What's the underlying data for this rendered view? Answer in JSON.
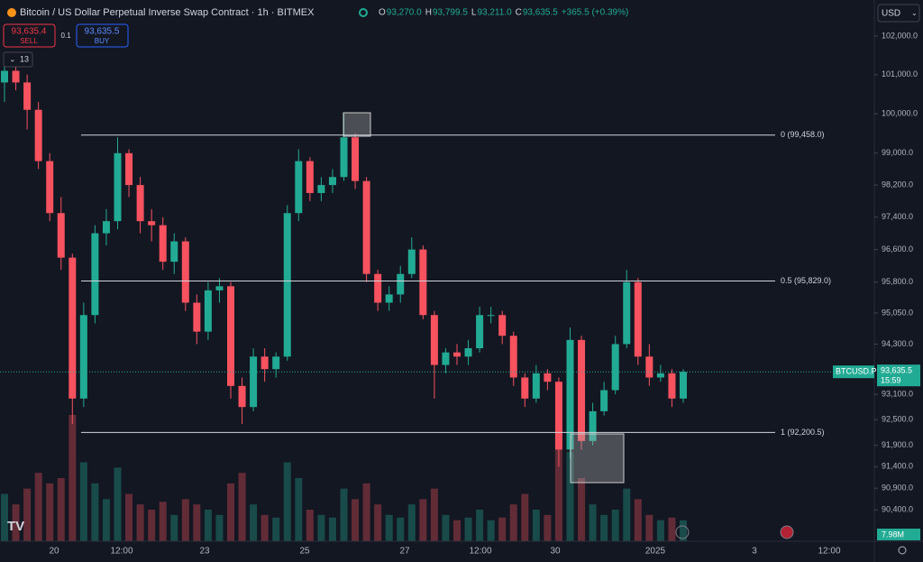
{
  "header": {
    "title": "Bitcoin / US Dollar Perpetual Inverse Swap Contract · 1h · BITMEX",
    "ohlc": [
      {
        "key": "O",
        "value": "93,270.0"
      },
      {
        "key": "H",
        "value": "93,799.5"
      },
      {
        "key": "L",
        "value": "93,211.0"
      },
      {
        "key": "C",
        "value": "93,635.5"
      }
    ],
    "change": "+365.5 (+0.39%)"
  },
  "trade": {
    "sell_price": "93,635.4",
    "sell": "SELL",
    "qty": "0.1",
    "buy_price": "93,635.5",
    "buy": "BUY"
  },
  "indicators_count": "13",
  "currency": "USD",
  "chart_data": {
    "type": "candlestick",
    "log_scale": true,
    "ylim": [
      89680,
      102940
    ],
    "yticks": [
      {
        "value": 102000,
        "label": "102,000.0"
      },
      {
        "value": 101000,
        "label": "101,000.0"
      },
      {
        "value": 100000,
        "label": "100,000.0"
      },
      {
        "value": 99000,
        "label": "99,000.0"
      },
      {
        "value": 98200,
        "label": "98,200.0"
      },
      {
        "value": 97400,
        "label": "97,400.0"
      },
      {
        "value": 96600,
        "label": "96,600.0"
      },
      {
        "value": 95800,
        "label": "95,800.0"
      },
      {
        "value": 95050,
        "label": "95,050.0"
      },
      {
        "value": 94300,
        "label": "94,300.0"
      },
      {
        "value": 93100,
        "label": "93,100.0"
      },
      {
        "value": 92500,
        "label": "92,500.0"
      },
      {
        "value": 91900,
        "label": "91,900.0"
      },
      {
        "value": 91400,
        "label": "91,400.0"
      },
      {
        "value": 90900,
        "label": "90,900.0"
      },
      {
        "value": 90400,
        "label": "90,400.0"
      }
    ],
    "xlabels": [
      "20",
      "12:00",
      "23",
      "25",
      "27",
      "12:00",
      "30",
      "2025",
      "3",
      "12:00"
    ],
    "open": [
      100800,
      101100,
      100800,
      100100,
      98800,
      97500,
      96400,
      93000,
      95000,
      97000,
      97300,
      99000,
      98200,
      97300,
      97200,
      96300,
      96800,
      95300,
      94600,
      95600,
      95700,
      93300,
      92800,
      94000,
      93700,
      94000,
      97500,
      98800,
      98000,
      98200,
      98400,
      99400,
      98300,
      96000,
      95300,
      95500,
      96000,
      96600,
      95000,
      93800,
      94100,
      94000,
      94200,
      95000,
      95000,
      94500,
      93500,
      93000,
      93600,
      93400,
      91800,
      94400,
      92000,
      92700,
      93200,
      94300,
      95800,
      94000,
      93500,
      93600,
      93000
    ],
    "high": [
      101300,
      101500,
      101000,
      100300,
      99000,
      97900,
      96500,
      95300,
      97200,
      97600,
      99400,
      99100,
      98400,
      97600,
      97400,
      97000,
      96900,
      95500,
      95800,
      95900,
      95800,
      93500,
      94200,
      94200,
      94100,
      97700,
      99100,
      98900,
      98400,
      98600,
      100000,
      99500,
      98400,
      96100,
      95700,
      96200,
      96900,
      96700,
      95100,
      94200,
      94300,
      94400,
      95200,
      95200,
      95100,
      94600,
      93600,
      93800,
      93700,
      93500,
      94700,
      94500,
      92900,
      93400,
      94500,
      96100,
      95900,
      94300,
      93800,
      93700,
      93700
    ],
    "low": [
      100300,
      100600,
      99600,
      98600,
      97300,
      96100,
      92400,
      92800,
      94800,
      96700,
      97100,
      97900,
      97000,
      96800,
      96100,
      96000,
      95100,
      94300,
      94400,
      95300,
      93000,
      92400,
      92700,
      93400,
      93500,
      93900,
      97300,
      97800,
      97800,
      98000,
      98300,
      98100,
      95800,
      95100,
      95100,
      95300,
      95900,
      94900,
      93000,
      93600,
      93800,
      93800,
      94100,
      94800,
      94300,
      93300,
      92800,
      92900,
      93200,
      91400,
      91600,
      91800,
      91900,
      92600,
      93100,
      94200,
      93800,
      93300,
      93400,
      92800,
      92900
    ],
    "close": [
      101100,
      100800,
      100100,
      98800,
      97500,
      96400,
      93000,
      95000,
      97000,
      97300,
      99000,
      98200,
      97300,
      97200,
      96300,
      96800,
      95300,
      94600,
      95600,
      95700,
      93300,
      92800,
      94000,
      93700,
      94000,
      97500,
      98800,
      98000,
      98200,
      98400,
      99400,
      98300,
      96000,
      95300,
      95500,
      96000,
      96600,
      95000,
      93800,
      94100,
      94000,
      94200,
      95000,
      95000,
      94500,
      93500,
      93000,
      93600,
      93400,
      91800,
      94400,
      92000,
      92700,
      93200,
      94300,
      95800,
      94000,
      93500,
      93600,
      93000,
      93635.5
    ],
    "volume": [
      18,
      14,
      20,
      26,
      22,
      24,
      48,
      30,
      22,
      16,
      28,
      18,
      14,
      12,
      15,
      10,
      16,
      14,
      12,
      10,
      22,
      26,
      14,
      10,
      9,
      30,
      24,
      12,
      10,
      9,
      20,
      16,
      22,
      14,
      10,
      9,
      14,
      16,
      20,
      10,
      8,
      9,
      12,
      8,
      9,
      14,
      18,
      12,
      10,
      40,
      34,
      24,
      14,
      10,
      12,
      20,
      16,
      10,
      8,
      9,
      7.98
    ],
    "volume_label": "7.98M",
    "up_color": "#22ab94",
    "down_color": "#f7525f",
    "fib_levels": [
      {
        "value": 99458,
        "label": "0 (99,458.0)"
      },
      {
        "value": 95829,
        "label": "0.5 (95,829.0)"
      },
      {
        "value": 92200.5,
        "label": "1 (92,200.5)"
      }
    ],
    "last_price": {
      "value": 93635.5,
      "label": "93,635.5"
    },
    "symbol": "BTCUSD.P",
    "countdown": "15:59"
  }
}
